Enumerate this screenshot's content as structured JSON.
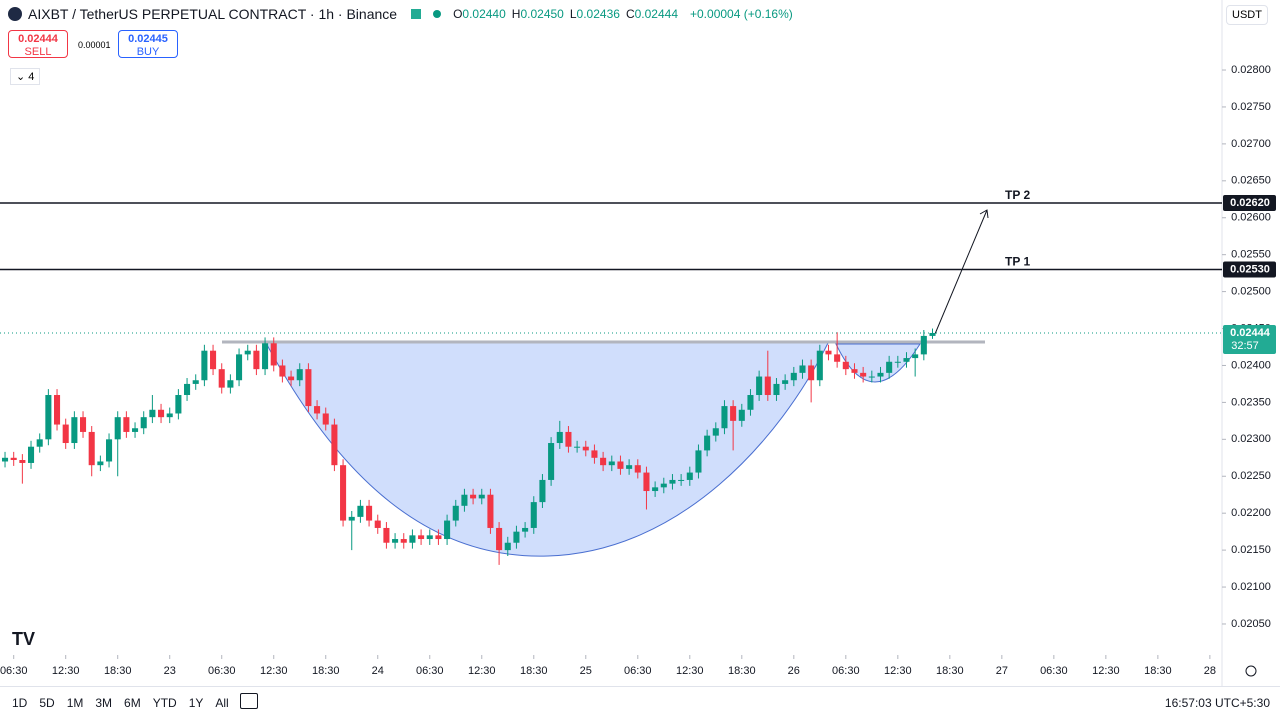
{
  "header": {
    "title": "AIXBT / TetherUS PERPETUAL CONTRACT · 1h · Binance",
    "ohlc": [
      {
        "key": "O",
        "value": "0.02440"
      },
      {
        "key": "H",
        "value": "0.02450"
      },
      {
        "key": "L",
        "value": "0.02436"
      },
      {
        "key": "C",
        "value": "0.02444"
      }
    ],
    "change": "+0.00004 (+0.16%)",
    "sell_price": "0.02444",
    "sell": "SELL",
    "spread": "0.00001",
    "buy_price": "0.02445",
    "buy": "BUY",
    "indicators": "4",
    "currency": "USDT"
  },
  "toolbar": {
    "ranges": [
      "1D",
      "5D",
      "1M",
      "3M",
      "6M",
      "YTD",
      "1Y",
      "All"
    ],
    "clock": "16:57:03 UTC+5:30"
  },
  "chart_data": {
    "type": "candlestick",
    "up_color": "#089981",
    "down_color": "#f23645",
    "open": [
      0.0227,
      0.02275,
      0.02272,
      0.02268,
      0.0229,
      0.023,
      0.0236,
      0.0232,
      0.02295,
      0.0233,
      0.0231,
      0.02265,
      0.0227,
      0.023,
      0.0233,
      0.0231,
      0.02315,
      0.0233,
      0.0234,
      0.0233,
      0.02335,
      0.0236,
      0.02375,
      0.0238,
      0.0242,
      0.02395,
      0.0237,
      0.0238,
      0.02415,
      0.0242,
      0.02395,
      0.0243,
      0.024,
      0.02385,
      0.0238,
      0.02395,
      0.02345,
      0.02335,
      0.0232,
      0.02265,
      0.0219,
      0.02195,
      0.0221,
      0.0219,
      0.0218,
      0.0216,
      0.02165,
      0.0216,
      0.0217,
      0.02165,
      0.0217,
      0.02165,
      0.0219,
      0.0221,
      0.02225,
      0.0222,
      0.02225,
      0.0218,
      0.0215,
      0.0216,
      0.02175,
      0.0218,
      0.02215,
      0.02245,
      0.02295,
      0.0231,
      0.0229,
      0.0229,
      0.02285,
      0.02275,
      0.02265,
      0.0227,
      0.0226,
      0.02265,
      0.02255,
      0.0223,
      0.02235,
      0.0224,
      0.02245,
      0.02245,
      0.02255,
      0.02285,
      0.02305,
      0.02315,
      0.02345,
      0.02325,
      0.0234,
      0.0236,
      0.02385,
      0.0236,
      0.02375,
      0.0238,
      0.0239,
      0.024,
      0.0238,
      0.0242,
      0.02415,
      0.02405,
      0.02395,
      0.0239,
      0.02385,
      0.02385,
      0.0239,
      0.02405,
      0.02405,
      0.0241,
      0.02415,
      0.0244
    ],
    "high": [
      0.02283,
      0.02283,
      0.0228,
      0.02298,
      0.02308,
      0.02368,
      0.02368,
      0.02328,
      0.02338,
      0.02338,
      0.02318,
      0.02278,
      0.02308,
      0.02338,
      0.02338,
      0.02323,
      0.02338,
      0.0236,
      0.02348,
      0.02343,
      0.02368,
      0.02383,
      0.02388,
      0.02428,
      0.02428,
      0.02403,
      0.02388,
      0.02423,
      0.02428,
      0.02428,
      0.02438,
      0.02438,
      0.02408,
      0.02393,
      0.02403,
      0.02403,
      0.02353,
      0.02343,
      0.02328,
      0.02273,
      0.02203,
      0.02218,
      0.02218,
      0.02198,
      0.02188,
      0.02173,
      0.02173,
      0.02178,
      0.02178,
      0.02178,
      0.02178,
      0.02198,
      0.02218,
      0.02233,
      0.02233,
      0.02233,
      0.02233,
      0.02188,
      0.02168,
      0.02183,
      0.02188,
      0.02223,
      0.02253,
      0.02303,
      0.02325,
      0.02318,
      0.02298,
      0.02298,
      0.02293,
      0.02283,
      0.02278,
      0.02278,
      0.02273,
      0.02273,
      0.02263,
      0.02243,
      0.02248,
      0.02253,
      0.02253,
      0.02263,
      0.02293,
      0.02313,
      0.02323,
      0.02353,
      0.02353,
      0.02348,
      0.02368,
      0.02393,
      0.0242,
      0.02383,
      0.02388,
      0.02398,
      0.02408,
      0.02408,
      0.02428,
      0.02428,
      0.02445,
      0.02413,
      0.02403,
      0.02398,
      0.02393,
      0.02398,
      0.02413,
      0.02413,
      0.02418,
      0.02423,
      0.02448,
      0.0245
    ],
    "low": [
      0.02262,
      0.02264,
      0.0224,
      0.0226,
      0.02282,
      0.02292,
      0.02312,
      0.02287,
      0.02287,
      0.02302,
      0.0225,
      0.02257,
      0.02262,
      0.0225,
      0.02302,
      0.02302,
      0.02307,
      0.02322,
      0.02322,
      0.02322,
      0.02327,
      0.02352,
      0.02367,
      0.02372,
      0.02387,
      0.02362,
      0.02362,
      0.02372,
      0.02407,
      0.02387,
      0.02387,
      0.02392,
      0.02377,
      0.02372,
      0.02372,
      0.02337,
      0.02327,
      0.02312,
      0.02257,
      0.02182,
      0.0215,
      0.02187,
      0.02182,
      0.02172,
      0.02152,
      0.02152,
      0.02152,
      0.02152,
      0.02157,
      0.02157,
      0.02157,
      0.02157,
      0.02182,
      0.02202,
      0.02212,
      0.02212,
      0.02172,
      0.0213,
      0.02142,
      0.02152,
      0.02167,
      0.02172,
      0.02207,
      0.02237,
      0.02287,
      0.02282,
      0.02282,
      0.02277,
      0.02267,
      0.02257,
      0.02257,
      0.02252,
      0.02252,
      0.02247,
      0.02205,
      0.02222,
      0.02227,
      0.02232,
      0.02237,
      0.02237,
      0.02247,
      0.02277,
      0.02297,
      0.02307,
      0.02285,
      0.02317,
      0.02332,
      0.02352,
      0.02352,
      0.02352,
      0.02367,
      0.02372,
      0.02382,
      0.0235,
      0.02372,
      0.02407,
      0.02397,
      0.02387,
      0.02382,
      0.02377,
      0.02377,
      0.02377,
      0.02382,
      0.02397,
      0.02397,
      0.02385,
      0.02407,
      0.02436
    ],
    "close": [
      0.02275,
      0.02272,
      0.02268,
      0.0229,
      0.023,
      0.0236,
      0.0232,
      0.02295,
      0.0233,
      0.0231,
      0.02265,
      0.0227,
      0.023,
      0.0233,
      0.0231,
      0.02315,
      0.0233,
      0.0234,
      0.0233,
      0.02335,
      0.0236,
      0.02375,
      0.0238,
      0.0242,
      0.02395,
      0.0237,
      0.0238,
      0.02415,
      0.0242,
      0.02395,
      0.0243,
      0.024,
      0.02385,
      0.0238,
      0.02395,
      0.02345,
      0.02335,
      0.0232,
      0.02265,
      0.0219,
      0.02195,
      0.0221,
      0.0219,
      0.0218,
      0.0216,
      0.02165,
      0.0216,
      0.0217,
      0.02165,
      0.0217,
      0.02165,
      0.0219,
      0.0221,
      0.02225,
      0.0222,
      0.02225,
      0.0218,
      0.0215,
      0.0216,
      0.02175,
      0.0218,
      0.02215,
      0.02245,
      0.02295,
      0.0231,
      0.0229,
      0.0229,
      0.02285,
      0.02275,
      0.02265,
      0.0227,
      0.0226,
      0.02265,
      0.02255,
      0.0223,
      0.02235,
      0.0224,
      0.02245,
      0.02245,
      0.02255,
      0.02285,
      0.02305,
      0.02315,
      0.02345,
      0.02325,
      0.0234,
      0.0236,
      0.02385,
      0.0236,
      0.02375,
      0.0238,
      0.0239,
      0.024,
      0.0238,
      0.0242,
      0.02415,
      0.02405,
      0.02395,
      0.0239,
      0.02385,
      0.02385,
      0.0239,
      0.02405,
      0.02405,
      0.0241,
      0.02415,
      0.0244,
      0.02444
    ],
    "xlim": [
      -0.58,
      140.4
    ],
    "xticks": [
      {
        "value": 1,
        "label": "06:30"
      },
      {
        "value": 7,
        "label": "12:30"
      },
      {
        "value": 13,
        "label": "18:30"
      },
      {
        "value": 19,
        "label": "23"
      },
      {
        "value": 25,
        "label": "06:30"
      },
      {
        "value": 31,
        "label": "12:30"
      },
      {
        "value": 37,
        "label": "18:30"
      },
      {
        "value": 43,
        "label": "24"
      },
      {
        "value": 49,
        "label": "06:30"
      },
      {
        "value": 55,
        "label": "12:30"
      },
      {
        "value": 61,
        "label": "18:30"
      },
      {
        "value": 67,
        "label": "25"
      },
      {
        "value": 73,
        "label": "06:30"
      },
      {
        "value": 79,
        "label": "12:30"
      },
      {
        "value": 85,
        "label": "18:30"
      },
      {
        "value": 91,
        "label": "26"
      },
      {
        "value": 97,
        "label": "06:30"
      },
      {
        "value": 103,
        "label": "12:30"
      },
      {
        "value": 109,
        "label": "18:30"
      },
      {
        "value": 115,
        "label": "27"
      },
      {
        "value": 121,
        "label": "06:30"
      },
      {
        "value": 127,
        "label": "12:30"
      },
      {
        "value": 133,
        "label": "18:30"
      },
      {
        "value": 139,
        "label": "28"
      }
    ],
    "ylim": [
      0.02008,
      0.028948
    ],
    "yticks": [
      {
        "value": 0.0205,
        "label": "0.02050"
      },
      {
        "value": 0.021,
        "label": "0.02100"
      },
      {
        "value": 0.0215,
        "label": "0.02150"
      },
      {
        "value": 0.022,
        "label": "0.02200"
      },
      {
        "value": 0.0225,
        "label": "0.02250"
      },
      {
        "value": 0.023,
        "label": "0.02300"
      },
      {
        "value": 0.0235,
        "label": "0.02350"
      },
      {
        "value": 0.024,
        "label": "0.02400"
      },
      {
        "value": 0.0245,
        "label": "0.02450"
      },
      {
        "value": 0.025,
        "label": "0.02500"
      },
      {
        "value": 0.0255,
        "label": "0.02550"
      },
      {
        "value": 0.026,
        "label": "0.02600"
      },
      {
        "value": 0.0265,
        "label": "0.02650"
      },
      {
        "value": 0.027,
        "label": "0.02700"
      },
      {
        "value": 0.0275,
        "label": "0.02750"
      },
      {
        "value": 0.028,
        "label": "0.02800"
      }
    ],
    "levels": [
      {
        "name": "TP 2",
        "value": 0.0262,
        "value_label": "0.02620"
      },
      {
        "name": "TP 1",
        "value": 0.0253,
        "value_label": "0.02530"
      }
    ],
    "last_price": {
      "value": 0.02444,
      "value_label": "0.02444",
      "countdown": "32:57"
    }
  }
}
